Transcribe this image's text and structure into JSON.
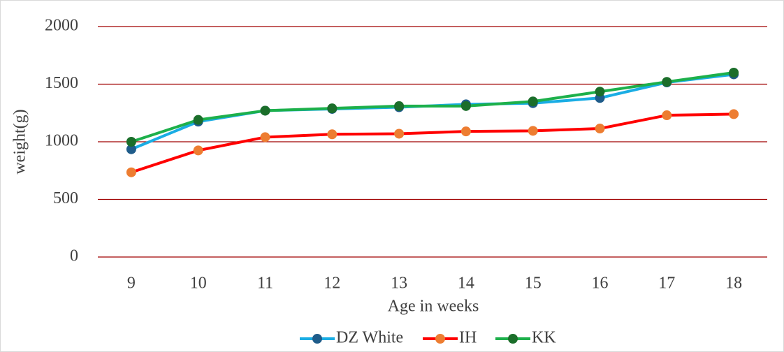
{
  "chart_data": {
    "type": "line",
    "x_label": "Age in weeks",
    "y_label": "weight(g)",
    "categories": [
      "9",
      "10",
      "11",
      "12",
      "13",
      "14",
      "15",
      "16",
      "17",
      "18"
    ],
    "series": [
      {
        "name": "DZ White",
        "color": "#1AADE4",
        "marker_color": "#1F5C8A",
        "values": [
          935,
          1175,
          1270,
          1285,
          1300,
          1325,
          1335,
          1380,
          1515,
          1585
        ]
      },
      {
        "name": "IH",
        "color": "#FF0000",
        "marker_color": "#ED7D31",
        "values": [
          735,
          925,
          1040,
          1065,
          1070,
          1090,
          1095,
          1115,
          1230,
          1240
        ]
      },
      {
        "name": "KK",
        "color": "#1DB04B",
        "marker_color": "#1B6E2A",
        "values": [
          1000,
          1190,
          1270,
          1290,
          1310,
          1310,
          1350,
          1435,
          1520,
          1600
        ]
      }
    ],
    "ylim": [
      0,
      2000
    ],
    "yticks": [
      0,
      500,
      1000,
      1500,
      2000
    ],
    "grid": true,
    "grid_color": "#A00000",
    "legend": "bottom"
  }
}
